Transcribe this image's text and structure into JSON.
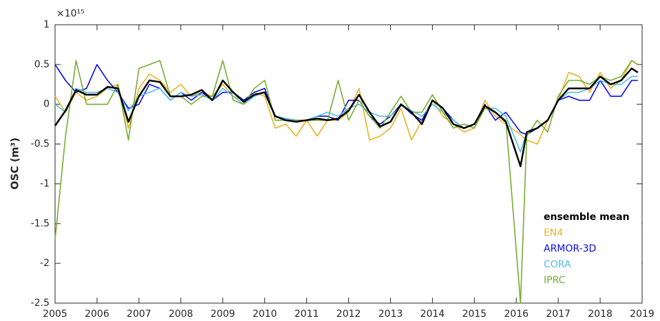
{
  "chart_data": {
    "type": "line",
    "y_multiplier": "×10¹⁵",
    "y_label": "OSC (m³)",
    "x": [
      2005,
      2005.25,
      2005.5,
      2005.75,
      2006,
      2006.25,
      2006.5,
      2006.75,
      2007,
      2007.25,
      2007.5,
      2007.75,
      2008,
      2008.25,
      2008.5,
      2008.75,
      2009,
      2009.25,
      2009.5,
      2009.75,
      2010,
      2010.25,
      2010.5,
      2010.75,
      2011,
      2011.25,
      2011.5,
      2011.75,
      2012,
      2012.25,
      2012.5,
      2012.75,
      2013,
      2013.25,
      2013.5,
      2013.75,
      2014,
      2014.25,
      2014.5,
      2014.75,
      2015,
      2015.25,
      2015.5,
      2015.75,
      2016.1,
      2016.25,
      2016.5,
      2016.75,
      2017,
      2017.25,
      2017.5,
      2017.75,
      2018,
      2018.25,
      2018.5,
      2018.75,
      2018.9
    ],
    "series": [
      {
        "name": "ensemble mean",
        "color": "#000000",
        "values": [
          -0.27,
          -0.08,
          0.18,
          0.12,
          0.12,
          0.22,
          0.2,
          -0.22,
          0.1,
          0.3,
          0.28,
          0.1,
          0.1,
          0.12,
          0.18,
          0.05,
          0.3,
          0.15,
          0.03,
          0.12,
          0.15,
          -0.15,
          -0.2,
          -0.22,
          -0.2,
          -0.18,
          -0.2,
          -0.18,
          -0.08,
          0.12,
          -0.1,
          -0.28,
          -0.22,
          0,
          -0.1,
          -0.25,
          0.05,
          -0.05,
          -0.25,
          -0.3,
          -0.25,
          -0.02,
          -0.1,
          -0.22,
          -0.78,
          -0.35,
          -0.3,
          -0.2,
          0.05,
          0.2,
          0.2,
          0.2,
          0.35,
          0.25,
          0.3,
          0.45,
          0.4
        ]
      },
      {
        "name": "EN4",
        "color": "#EDB120",
        "values": [
          0.1,
          -0.1,
          0.15,
          0.05,
          0.1,
          0.2,
          0.25,
          -0.3,
          0.2,
          0.38,
          0.3,
          0.15,
          0.25,
          0.1,
          0.15,
          0.1,
          0.25,
          0.1,
          0.05,
          0.15,
          0.1,
          -0.3,
          -0.25,
          -0.4,
          -0.2,
          -0.4,
          -0.2,
          -0.2,
          -0.1,
          0.2,
          -0.45,
          -0.4,
          -0.3,
          -0.05,
          -0.45,
          -0.2,
          0.05,
          -0.15,
          -0.25,
          -0.35,
          -0.3,
          0.05,
          -0.15,
          -0.25,
          -0.38,
          -0.45,
          -0.5,
          -0.2,
          0.05,
          0.4,
          0.35,
          0.15,
          0.4,
          0.2,
          0.3,
          0.55,
          0.5
        ]
      },
      {
        "name": "ARMOR-3D",
        "color": "#0A0AEE",
        "values": [
          0.5,
          0.3,
          0.15,
          0.2,
          0.5,
          0.3,
          0.15,
          -0.05,
          0,
          0.25,
          0.2,
          0.05,
          0.15,
          0.05,
          0.15,
          0.05,
          0.15,
          0.15,
          0.05,
          0.15,
          0.2,
          -0.15,
          -0.18,
          -0.2,
          -0.2,
          -0.15,
          -0.15,
          -0.2,
          0.05,
          0.05,
          -0.15,
          -0.25,
          -0.15,
          0,
          -0.12,
          -0.2,
          0.05,
          -0.05,
          -0.2,
          -0.3,
          -0.25,
          0,
          -0.2,
          -0.1,
          -0.35,
          -0.38,
          -0.3,
          -0.2,
          0.05,
          0.1,
          0.05,
          0.05,
          0.3,
          0.1,
          0.1,
          0.3,
          0.3
        ]
      },
      {
        "name": "CORA",
        "color": "#4DBEEE",
        "values": [
          0,
          -0.1,
          0.2,
          0.15,
          0.15,
          0.2,
          0.15,
          -0.08,
          0.1,
          0.15,
          0.2,
          0.05,
          0.15,
          0.1,
          0.12,
          0.05,
          0.2,
          0.1,
          0,
          0.1,
          0.15,
          -0.15,
          -0.18,
          -0.2,
          -0.2,
          -0.15,
          -0.1,
          -0.15,
          -0.05,
          0,
          -0.1,
          -0.15,
          -0.15,
          -0.02,
          -0.08,
          -0.15,
          0,
          -0.1,
          -0.2,
          -0.3,
          -0.25,
          -0.05,
          -0.05,
          -0.15,
          -0.6,
          -0.35,
          -0.3,
          -0.2,
          0.05,
          0.15,
          0.15,
          0.2,
          0.3,
          0.25,
          0.25,
          0.35,
          0.35
        ]
      },
      {
        "name": "IPRC",
        "color": "#77AC30",
        "values": [
          -1.7,
          -0.4,
          0.55,
          0,
          0,
          0,
          0.25,
          -0.45,
          0.45,
          0.5,
          0.55,
          0.1,
          0.1,
          0,
          0.1,
          0.1,
          0.55,
          0.05,
          0,
          0.2,
          0.3,
          -0.2,
          -0.2,
          -0.2,
          -0.2,
          -0.2,
          -0.2,
          0.3,
          -0.2,
          0.05,
          -0.15,
          -0.3,
          -0.1,
          0.1,
          -0.1,
          -0.1,
          0.12,
          -0.1,
          -0.3,
          -0.25,
          -0.3,
          -0.05,
          -0.1,
          -0.2,
          -2.5,
          -0.4,
          -0.2,
          -0.35,
          0.1,
          0.3,
          0.3,
          0.25,
          0.35,
          0.3,
          0.35,
          0.55,
          0.5
        ]
      }
    ],
    "xlim": [
      2005,
      2019
    ],
    "xticks": [
      2005,
      2006,
      2007,
      2008,
      2009,
      2010,
      2011,
      2012,
      2013,
      2014,
      2015,
      2016,
      2017,
      2018,
      2019
    ],
    "ylim": [
      -2.5,
      1
    ],
    "yticks": [
      1,
      0.5,
      0,
      -0.5,
      -1,
      -1.5,
      -2,
      -2.5
    ],
    "grid": false,
    "legend": "lower right"
  }
}
